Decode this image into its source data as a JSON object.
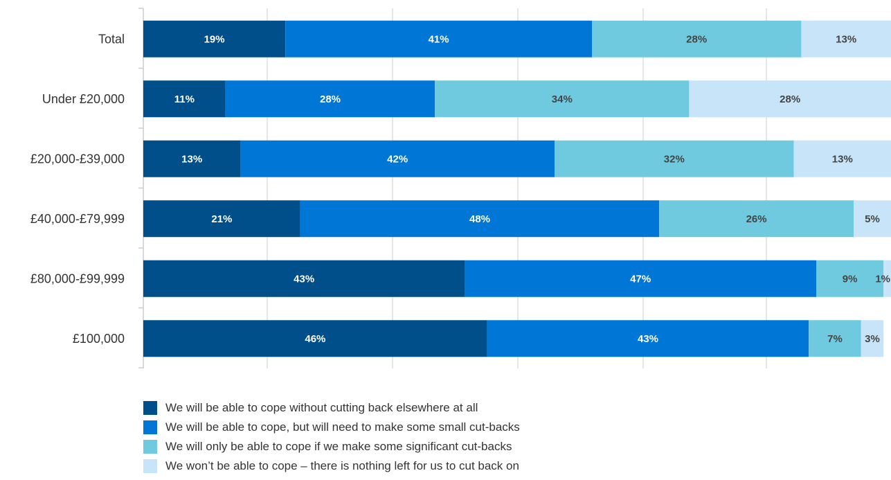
{
  "chart_data": {
    "type": "bar",
    "orientation": "horizontal",
    "stacked": true,
    "categories": [
      "Total",
      "Under £20,000",
      "£20,000-£39,000",
      "£40,000-£79,999",
      "£80,000-£99,999",
      "£100,000"
    ],
    "series": [
      {
        "name": "We will be able to cope without cutting back elsewhere at all",
        "color": "#004f8a",
        "label_color": "#ffffff",
        "values": [
          19,
          11,
          13,
          21,
          43,
          46
        ]
      },
      {
        "name": "We will be able to cope, but will need to make some small cut-backs",
        "color": "#0077d6",
        "label_color": "#ffffff",
        "values": [
          41,
          28,
          42,
          48,
          47,
          43
        ]
      },
      {
        "name": "We will only be able to cope if we make some significant cut-backs",
        "color": "#6fcae0",
        "label_color": "#444444",
        "values": [
          28,
          34,
          32,
          26,
          9,
          7
        ]
      },
      {
        "name": "We won’t be able to cope – there is nothing left for us to cut back on",
        "color": "#c7e4f8",
        "label_color": "#444444",
        "values": [
          13,
          28,
          13,
          5,
          1,
          3
        ]
      }
    ],
    "labels": [
      [
        "19%",
        "11%",
        "13%",
        "21%",
        "43%",
        "46%"
      ],
      [
        "41%",
        "28%",
        "42%",
        "48%",
        "47%",
        "43%"
      ],
      [
        "28%",
        "34%",
        "32%",
        "26%",
        "9%",
        "7%"
      ],
      [
        "13%",
        "28%",
        "13%",
        "5%",
        "1%",
        "3%"
      ]
    ],
    "xlim": [
      0,
      100
    ],
    "grid": true,
    "legend_position": "bottom-left"
  }
}
